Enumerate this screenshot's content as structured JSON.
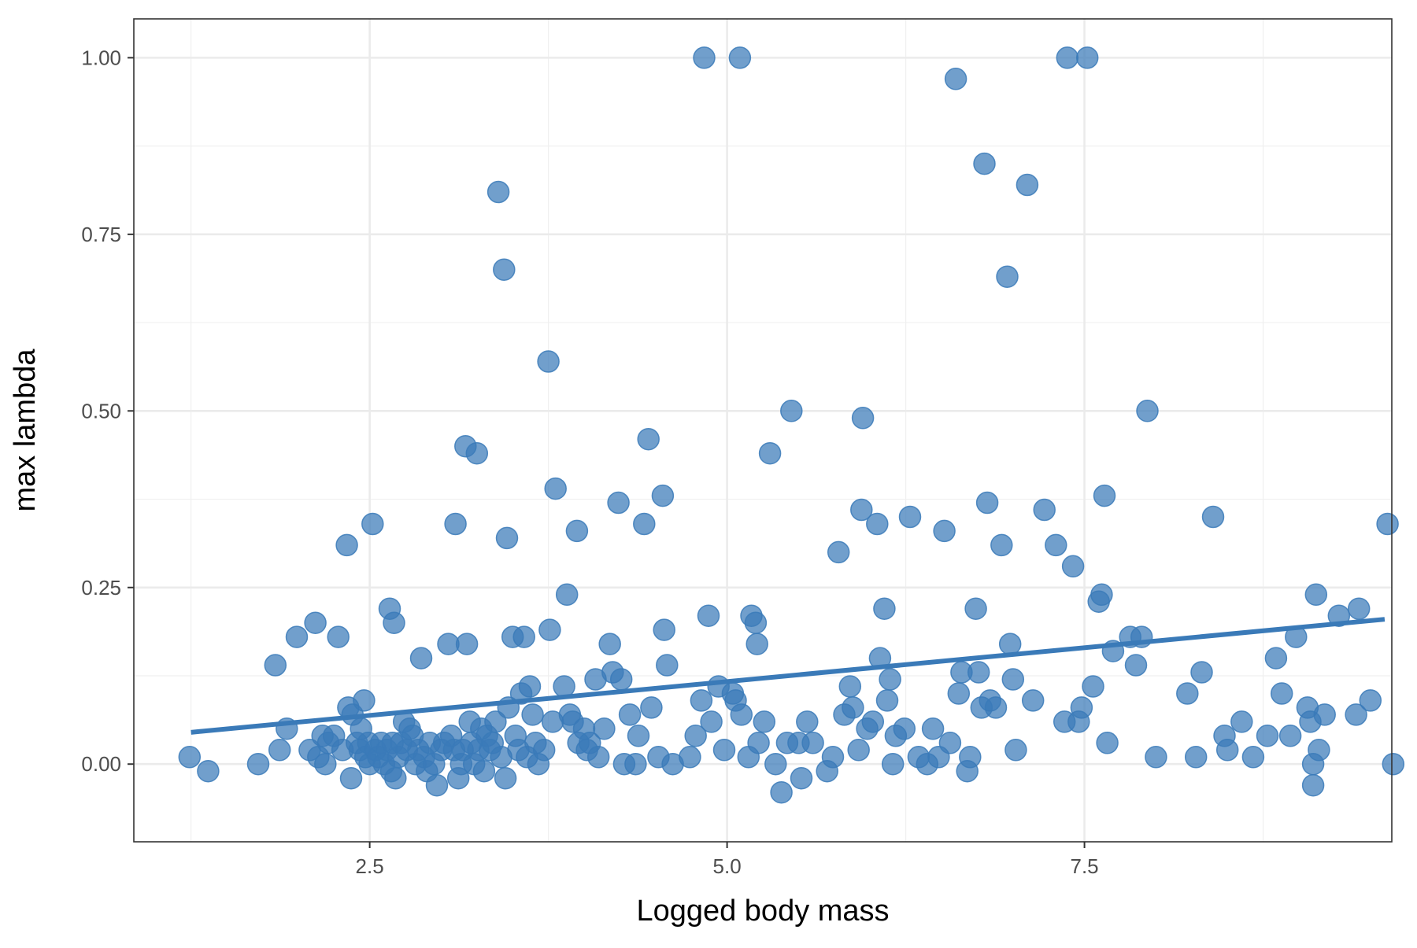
{
  "chart_data": {
    "type": "scatter",
    "title": "",
    "xlabel": "Logged body mass",
    "ylabel": "max lambda",
    "xlim": [
      0.85,
      9.65
    ],
    "ylim": [
      -0.11,
      1.055
    ],
    "x_ticks": [
      2.5,
      5.0,
      7.5
    ],
    "x_tick_labels": [
      "2.5",
      "5.0",
      "7.5"
    ],
    "y_ticks": [
      0.0,
      0.25,
      0.5,
      0.75,
      1.0
    ],
    "y_tick_labels": [
      "0.00",
      "0.25",
      "0.50",
      "0.75",
      "1.00"
    ],
    "x_minor_ticks": [
      1.25,
      3.75,
      6.25,
      8.75
    ],
    "y_minor_ticks": [
      0.125,
      0.375,
      0.625,
      0.875
    ],
    "grid": true,
    "theme": "bw",
    "point_color": "#3A7AB8",
    "line_color": "#3A7AB8",
    "trend_line": {
      "x": [
        1.25,
        9.6
      ],
      "y": [
        0.045,
        0.205
      ]
    },
    "points": [
      [
        1.24,
        0.01
      ],
      [
        1.37,
        -0.01
      ],
      [
        1.72,
        0.0
      ],
      [
        1.84,
        0.14
      ],
      [
        1.87,
        0.02
      ],
      [
        1.92,
        0.05
      ],
      [
        1.99,
        0.18
      ],
      [
        2.08,
        0.02
      ],
      [
        2.12,
        0.2
      ],
      [
        2.14,
        0.01
      ],
      [
        2.17,
        0.04
      ],
      [
        2.19,
        0.0
      ],
      [
        2.21,
        0.03
      ],
      [
        2.25,
        0.04
      ],
      [
        2.28,
        0.18
      ],
      [
        2.31,
        0.02
      ],
      [
        2.34,
        0.31
      ],
      [
        2.35,
        0.08
      ],
      [
        2.37,
        -0.02
      ],
      [
        2.38,
        0.07
      ],
      [
        2.41,
        0.03
      ],
      [
        2.43,
        0.02
      ],
      [
        2.44,
        0.05
      ],
      [
        2.46,
        0.09
      ],
      [
        2.47,
        0.01
      ],
      [
        2.49,
        0.03
      ],
      [
        2.5,
        0.0
      ],
      [
        2.52,
        0.34
      ],
      [
        2.54,
        0.02
      ],
      [
        2.56,
        0.01
      ],
      [
        2.58,
        0.03
      ],
      [
        2.6,
        0.0
      ],
      [
        2.62,
        0.02
      ],
      [
        2.64,
        0.22
      ],
      [
        2.65,
        -0.01
      ],
      [
        2.66,
        0.03
      ],
      [
        2.67,
        0.2
      ],
      [
        2.68,
        -0.02
      ],
      [
        2.7,
        0.01
      ],
      [
        2.72,
        0.03
      ],
      [
        2.74,
        0.06
      ],
      [
        2.76,
        0.02
      ],
      [
        2.78,
        0.05
      ],
      [
        2.8,
        0.04
      ],
      [
        2.82,
        0.0
      ],
      [
        2.84,
        0.02
      ],
      [
        2.86,
        0.15
      ],
      [
        2.88,
        0.01
      ],
      [
        2.9,
        -0.01
      ],
      [
        2.92,
        0.03
      ],
      [
        2.95,
        0.0
      ],
      [
        2.97,
        -0.03
      ],
      [
        3.0,
        0.02
      ],
      [
        3.02,
        0.03
      ],
      [
        3.05,
        0.17
      ],
      [
        3.07,
        0.04
      ],
      [
        3.09,
        0.02
      ],
      [
        3.1,
        0.34
      ],
      [
        3.12,
        -0.02
      ],
      [
        3.14,
        0.0
      ],
      [
        3.15,
        0.02
      ],
      [
        3.17,
        0.45
      ],
      [
        3.18,
        0.17
      ],
      [
        3.2,
        0.06
      ],
      [
        3.21,
        0.03
      ],
      [
        3.23,
        0.0
      ],
      [
        3.25,
        0.44
      ],
      [
        3.26,
        0.02
      ],
      [
        3.28,
        0.05
      ],
      [
        3.3,
        -0.01
      ],
      [
        3.32,
        0.04
      ],
      [
        3.34,
        0.02
      ],
      [
        3.36,
        0.03
      ],
      [
        3.38,
        0.06
      ],
      [
        3.4,
        0.81
      ],
      [
        3.42,
        0.01
      ],
      [
        3.44,
        0.7
      ],
      [
        3.45,
        -0.02
      ],
      [
        3.46,
        0.32
      ],
      [
        3.47,
        0.08
      ],
      [
        3.5,
        0.18
      ],
      [
        3.52,
        0.04
      ],
      [
        3.54,
        0.02
      ],
      [
        3.56,
        0.1
      ],
      [
        3.58,
        0.18
      ],
      [
        3.6,
        0.01
      ],
      [
        3.62,
        0.11
      ],
      [
        3.64,
        0.07
      ],
      [
        3.66,
        0.03
      ],
      [
        3.68,
        0.0
      ],
      [
        3.72,
        0.02
      ],
      [
        3.75,
        0.57
      ],
      [
        3.76,
        0.19
      ],
      [
        3.78,
        0.06
      ],
      [
        3.8,
        0.39
      ],
      [
        3.86,
        0.11
      ],
      [
        3.88,
        0.24
      ],
      [
        3.9,
        0.07
      ],
      [
        3.92,
        0.06
      ],
      [
        3.95,
        0.33
      ],
      [
        3.96,
        0.03
      ],
      [
        4.0,
        0.05
      ],
      [
        4.02,
        0.02
      ],
      [
        4.04,
        0.03
      ],
      [
        4.08,
        0.12
      ],
      [
        4.1,
        0.01
      ],
      [
        4.14,
        0.05
      ],
      [
        4.18,
        0.17
      ],
      [
        4.2,
        0.13
      ],
      [
        4.24,
        0.37
      ],
      [
        4.26,
        0.12
      ],
      [
        4.28,
        0.0
      ],
      [
        4.32,
        0.07
      ],
      [
        4.36,
        0.0
      ],
      [
        4.38,
        0.04
      ],
      [
        4.42,
        0.34
      ],
      [
        4.45,
        0.46
      ],
      [
        4.47,
        0.08
      ],
      [
        4.52,
        0.01
      ],
      [
        4.55,
        0.38
      ],
      [
        4.56,
        0.19
      ],
      [
        4.58,
        0.14
      ],
      [
        4.62,
        0.0
      ],
      [
        4.74,
        0.01
      ],
      [
        4.78,
        0.04
      ],
      [
        4.82,
        0.09
      ],
      [
        4.84,
        1.0
      ],
      [
        4.87,
        0.21
      ],
      [
        4.89,
        0.06
      ],
      [
        4.94,
        0.11
      ],
      [
        4.98,
        0.02
      ],
      [
        5.04,
        0.1
      ],
      [
        5.06,
        0.09
      ],
      [
        5.09,
        1.0
      ],
      [
        5.1,
        0.07
      ],
      [
        5.15,
        0.01
      ],
      [
        5.17,
        0.21
      ],
      [
        5.2,
        0.2
      ],
      [
        5.21,
        0.17
      ],
      [
        5.22,
        0.03
      ],
      [
        5.26,
        0.06
      ],
      [
        5.3,
        0.44
      ],
      [
        5.34,
        0.0
      ],
      [
        5.38,
        -0.04
      ],
      [
        5.42,
        0.03
      ],
      [
        5.45,
        0.5
      ],
      [
        5.5,
        0.03
      ],
      [
        5.52,
        -0.02
      ],
      [
        5.56,
        0.06
      ],
      [
        5.6,
        0.03
      ],
      [
        5.7,
        -0.01
      ],
      [
        5.74,
        0.01
      ],
      [
        5.78,
        0.3
      ],
      [
        5.82,
        0.07
      ],
      [
        5.86,
        0.11
      ],
      [
        5.88,
        0.08
      ],
      [
        5.92,
        0.02
      ],
      [
        5.94,
        0.36
      ],
      [
        5.95,
        0.49
      ],
      [
        5.98,
        0.05
      ],
      [
        6.02,
        0.06
      ],
      [
        6.05,
        0.34
      ],
      [
        6.07,
        0.15
      ],
      [
        6.1,
        0.22
      ],
      [
        6.12,
        0.09
      ],
      [
        6.14,
        0.12
      ],
      [
        6.16,
        0.0
      ],
      [
        6.18,
        0.04
      ],
      [
        6.24,
        0.05
      ],
      [
        6.28,
        0.35
      ],
      [
        6.34,
        0.01
      ],
      [
        6.4,
        0.0
      ],
      [
        6.44,
        0.05
      ],
      [
        6.48,
        0.01
      ],
      [
        6.52,
        0.33
      ],
      [
        6.56,
        0.03
      ],
      [
        6.6,
        0.97
      ],
      [
        6.62,
        0.1
      ],
      [
        6.64,
        0.13
      ],
      [
        6.68,
        -0.01
      ],
      [
        6.7,
        0.01
      ],
      [
        6.74,
        0.22
      ],
      [
        6.76,
        0.13
      ],
      [
        6.78,
        0.08
      ],
      [
        6.8,
        0.85
      ],
      [
        6.82,
        0.37
      ],
      [
        6.84,
        0.09
      ],
      [
        6.88,
        0.08
      ],
      [
        6.92,
        0.31
      ],
      [
        6.96,
        0.69
      ],
      [
        6.98,
        0.17
      ],
      [
        7.0,
        0.12
      ],
      [
        7.02,
        0.02
      ],
      [
        7.1,
        0.82
      ],
      [
        7.14,
        0.09
      ],
      [
        7.22,
        0.36
      ],
      [
        7.3,
        0.31
      ],
      [
        7.36,
        0.06
      ],
      [
        7.38,
        1.0
      ],
      [
        7.42,
        0.28
      ],
      [
        7.46,
        0.06
      ],
      [
        7.48,
        0.08
      ],
      [
        7.52,
        1.0
      ],
      [
        7.56,
        0.11
      ],
      [
        7.6,
        0.23
      ],
      [
        7.62,
        0.24
      ],
      [
        7.64,
        0.38
      ],
      [
        7.66,
        0.03
      ],
      [
        7.7,
        0.16
      ],
      [
        7.82,
        0.18
      ],
      [
        7.86,
        0.14
      ],
      [
        7.9,
        0.18
      ],
      [
        7.94,
        0.5
      ],
      [
        8.0,
        0.01
      ],
      [
        8.22,
        0.1
      ],
      [
        8.28,
        0.01
      ],
      [
        8.32,
        0.13
      ],
      [
        8.4,
        0.35
      ],
      [
        8.48,
        0.04
      ],
      [
        8.5,
        0.02
      ],
      [
        8.6,
        0.06
      ],
      [
        8.68,
        0.01
      ],
      [
        8.78,
        0.04
      ],
      [
        8.84,
        0.15
      ],
      [
        8.88,
        0.1
      ],
      [
        8.94,
        0.04
      ],
      [
        8.98,
        0.18
      ],
      [
        9.06,
        0.08
      ],
      [
        9.08,
        0.06
      ],
      [
        9.1,
        0.0
      ],
      [
        9.1,
        -0.03
      ],
      [
        9.12,
        0.24
      ],
      [
        9.14,
        0.02
      ],
      [
        9.18,
        0.07
      ],
      [
        9.28,
        0.21
      ],
      [
        9.4,
        0.07
      ],
      [
        9.42,
        0.22
      ],
      [
        9.5,
        0.09
      ],
      [
        9.62,
        0.34
      ],
      [
        9.66,
        0.0
      ]
    ]
  }
}
